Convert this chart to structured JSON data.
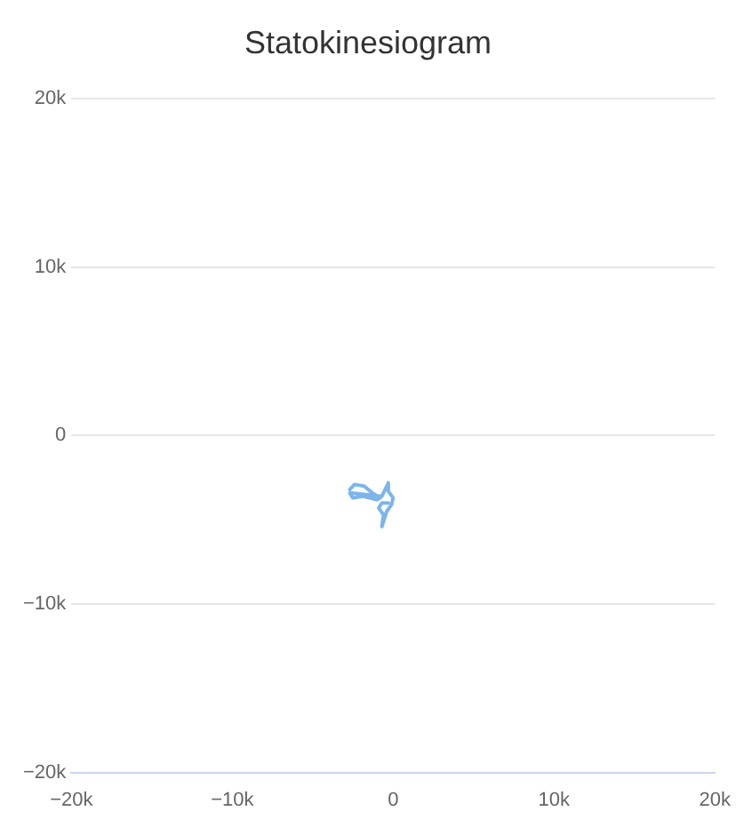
{
  "chart_data": {
    "type": "line",
    "title": "Statokinesiogram",
    "x": [
      -2700,
      -2400,
      -1800,
      -1300,
      -800,
      -1000,
      -1900,
      -2500,
      -2700,
      -700,
      -500,
      -300,
      -300,
      0,
      -100,
      -400,
      -700,
      -600,
      -900,
      -700,
      -300
    ],
    "series": [
      {
        "color": "#7cb5ec",
        "values": [
          -3200,
          -2900,
          -3000,
          -3400,
          -3700,
          -3800,
          -3600,
          -3700,
          -3400,
          -3600,
          -3200,
          -2800,
          -3300,
          -3700,
          -4100,
          -4500,
          -5400,
          -4700,
          -4300,
          -4000,
          -4000
        ]
      }
    ],
    "xlim": [
      -20000,
      20000
    ],
    "ylim": [
      -20000,
      20000
    ],
    "xticks": [
      {
        "value": -20000,
        "label": "−20k"
      },
      {
        "value": -10000,
        "label": "−10k"
      },
      0,
      {
        "value": 10000,
        "label": "10k"
      },
      {
        "value": 20000,
        "label": "20k"
      }
    ],
    "yticks": [
      {
        "value": -20000,
        "label": "−20k"
      },
      {
        "value": -10000,
        "label": "−10k"
      },
      0,
      {
        "value": 10000,
        "label": "10k"
      },
      {
        "value": 20000,
        "label": "20k"
      }
    ],
    "grid": "y",
    "marker": "none",
    "line_style": "solid",
    "legend": false
  }
}
